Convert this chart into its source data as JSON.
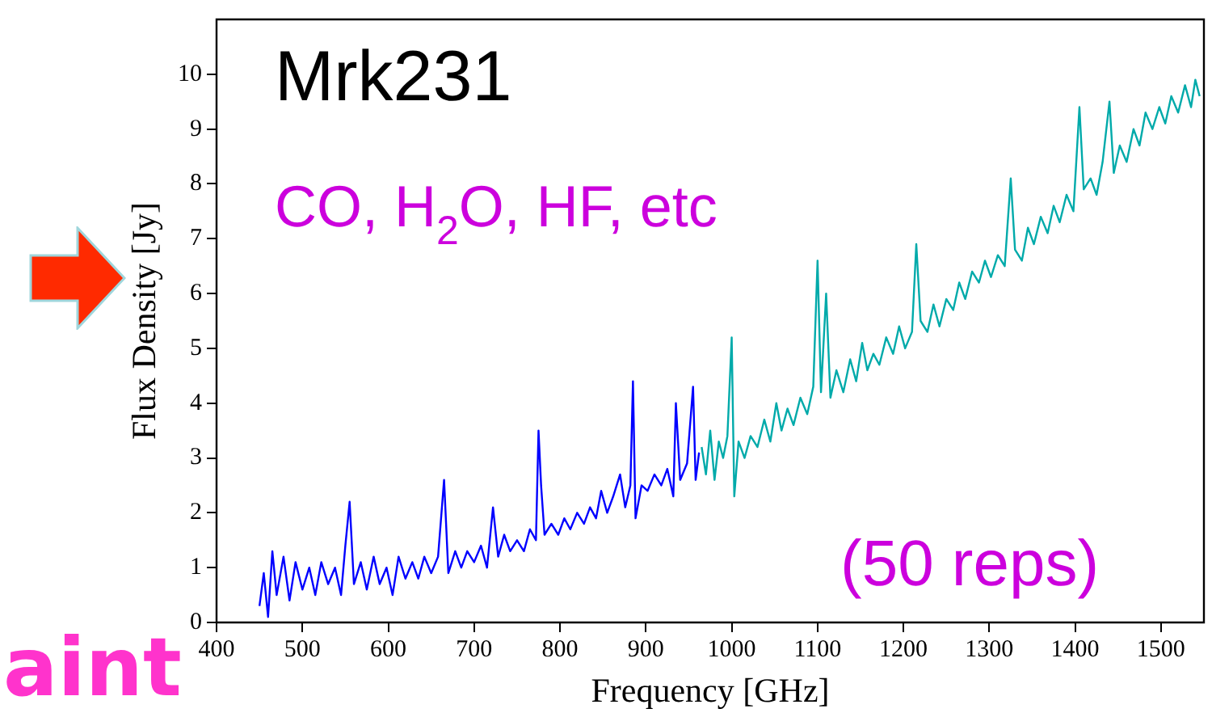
{
  "chart_data": {
    "type": "line",
    "xlabel": "Frequency [GHz]",
    "ylabel": "Flux Density [Jy]",
    "xlim": [
      400,
      1550
    ],
    "xticks": [
      400,
      500,
      600,
      700,
      800,
      900,
      1000,
      1100,
      1200,
      1300,
      1400,
      1500
    ],
    "ylim": [
      0,
      11
    ],
    "yticks": [
      0,
      1,
      2,
      3,
      4,
      5,
      6,
      7,
      8,
      9,
      10
    ],
    "annotations": [
      "Mrk231",
      "CO, H$_{2}$O, HF, etc",
      "(50 reps)",
      "aint"
    ],
    "series": [
      {
        "color": "#0000ff",
        "x": [
          450,
          455,
          460,
          465,
          470,
          478,
          485,
          492,
          500,
          508,
          515,
          522,
          530,
          538,
          545,
          550,
          555,
          560,
          568,
          575,
          583,
          590,
          598,
          605,
          612,
          620,
          628,
          635,
          642,
          650,
          658,
          665,
          670,
          678,
          685,
          692,
          700,
          708,
          715,
          722,
          728,
          735,
          742,
          750,
          758,
          765,
          772,
          775,
          778,
          782,
          790,
          798,
          805,
          812,
          820,
          828,
          835,
          842,
          848,
          855,
          862,
          870,
          876,
          882,
          885,
          888,
          895,
          902,
          910,
          918,
          925,
          932,
          935,
          940,
          948,
          955,
          958,
          962
        ],
        "values": [
          0.3,
          0.9,
          0.1,
          1.3,
          0.5,
          1.2,
          0.4,
          1.1,
          0.6,
          1.0,
          0.5,
          1.1,
          0.7,
          1.0,
          0.5,
          1.4,
          2.2,
          0.7,
          1.1,
          0.6,
          1.2,
          0.7,
          1.0,
          0.5,
          1.2,
          0.8,
          1.1,
          0.8,
          1.2,
          0.9,
          1.2,
          2.6,
          0.9,
          1.3,
          1.0,
          1.3,
          1.1,
          1.4,
          1.0,
          2.1,
          1.2,
          1.6,
          1.3,
          1.5,
          1.3,
          1.7,
          1.5,
          3.5,
          2.5,
          1.6,
          1.8,
          1.6,
          1.9,
          1.7,
          2.0,
          1.8,
          2.1,
          1.9,
          2.4,
          2.0,
          2.3,
          2.7,
          2.1,
          2.5,
          4.4,
          1.9,
          2.5,
          2.4,
          2.7,
          2.5,
          2.8,
          2.3,
          4.0,
          2.6,
          2.9,
          4.3,
          2.6,
          3.1
        ]
      },
      {
        "color": "#00aaaa",
        "x": [
          965,
          970,
          975,
          980,
          985,
          990,
          995,
          1000,
          1003,
          1008,
          1015,
          1022,
          1030,
          1038,
          1045,
          1052,
          1058,
          1065,
          1072,
          1080,
          1088,
          1095,
          1100,
          1104,
          1110,
          1115,
          1122,
          1130,
          1138,
          1145,
          1152,
          1158,
          1165,
          1172,
          1180,
          1188,
          1195,
          1202,
          1210,
          1215,
          1220,
          1228,
          1235,
          1242,
          1250,
          1258,
          1265,
          1272,
          1280,
          1288,
          1295,
          1302,
          1310,
          1318,
          1325,
          1330,
          1338,
          1345,
          1352,
          1360,
          1368,
          1375,
          1382,
          1390,
          1398,
          1405,
          1410,
          1418,
          1425,
          1432,
          1440,
          1445,
          1452,
          1460,
          1468,
          1475,
          1482,
          1490,
          1498,
          1505,
          1512,
          1520,
          1528,
          1535,
          1540,
          1545
        ],
        "values": [
          3.2,
          2.7,
          3.5,
          2.6,
          3.3,
          3.0,
          3.4,
          5.2,
          2.3,
          3.3,
          3.0,
          3.4,
          3.2,
          3.7,
          3.3,
          4.0,
          3.5,
          3.9,
          3.6,
          4.1,
          3.8,
          4.3,
          6.6,
          4.2,
          6.0,
          4.1,
          4.6,
          4.2,
          4.8,
          4.4,
          5.1,
          4.6,
          4.9,
          4.7,
          5.2,
          4.9,
          5.4,
          5.0,
          5.3,
          6.9,
          5.5,
          5.3,
          5.8,
          5.4,
          5.9,
          5.7,
          6.2,
          5.9,
          6.4,
          6.2,
          6.6,
          6.3,
          6.7,
          6.5,
          8.1,
          6.8,
          6.6,
          7.2,
          6.9,
          7.4,
          7.1,
          7.6,
          7.3,
          7.8,
          7.5,
          9.4,
          7.9,
          8.1,
          7.8,
          8.4,
          9.5,
          8.2,
          8.7,
          8.4,
          9.0,
          8.7,
          9.3,
          9.0,
          9.4,
          9.1,
          9.6,
          9.3,
          9.8,
          9.4,
          9.9,
          9.6
        ]
      }
    ]
  }
}
